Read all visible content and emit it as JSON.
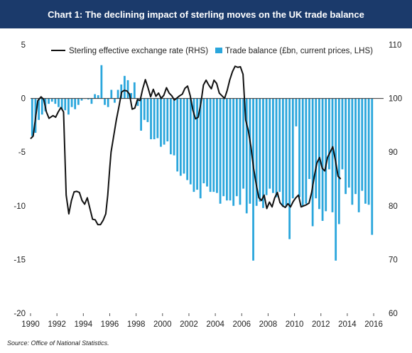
{
  "title": "Chart 1: The declining impact of sterling moves on the UK trade balance",
  "source": {
    "label": "Source:",
    "text": "Office of National Statistics."
  },
  "chart_data": {
    "type": "bar+line",
    "colors": {
      "bar": "#2aa6dc",
      "line": "#111111",
      "header": "#1b3a6b"
    },
    "legend": {
      "placement": "top",
      "line_label": "Sterling effective exchange rate (RHS)",
      "bar_label": "Trade balance (£bn, current prices, LHS)"
    },
    "x_ticks": [
      "1990",
      "1992",
      "1994",
      "1996",
      "1998",
      "2000",
      "2002",
      "2004",
      "2006",
      "2008",
      "2010",
      "2012",
      "2014",
      "2016"
    ],
    "y_left": {
      "min": -20,
      "max": 5,
      "ticks": [
        "5",
        "0",
        "-5",
        "-10",
        "-15",
        "-20"
      ]
    },
    "y_right": {
      "min": 60,
      "max": 110,
      "ticks": [
        "110",
        "100",
        "90",
        "80",
        "70",
        "60"
      ]
    },
    "x_range": [
      1990,
      2016.75
    ],
    "series": [
      {
        "name": "Trade balance (£bn, current prices, LHS)",
        "axis": "left",
        "start": 1990.0,
        "step": 0.25,
        "values": [
          -3.5,
          -3.2,
          -2.0,
          -1.5,
          -1.2,
          -0.5,
          -0.3,
          -0.5,
          -0.8,
          -1.0,
          -1.1,
          -1.5,
          -0.8,
          -1.0,
          -0.6,
          -0.2,
          0.0,
          -0.1,
          -0.5,
          0.4,
          0.3,
          3.1,
          -0.6,
          -0.8,
          0.8,
          -0.4,
          0.8,
          1.3,
          2.1,
          1.7,
          0.5,
          1.5,
          -0.7,
          -3.0,
          -2.0,
          -2.2,
          -3.8,
          -3.8,
          -3.7,
          -4.5,
          -4.3,
          -4.0,
          -5.2,
          -5.3,
          -6.8,
          -7.2,
          -7.0,
          -7.6,
          -8.0,
          -8.7,
          -8.5,
          -9.3,
          -7.9,
          -8.2,
          -8.7,
          -8.7,
          -8.8,
          -9.8,
          -9.1,
          -9.5,
          -9.5,
          -10.0,
          -9.1,
          -9.9,
          -8.4,
          -10.7,
          -9.8,
          -15.1,
          -10.0,
          -9.6,
          -10.2,
          -9.0,
          -8.4,
          -8.8,
          -9.2,
          -8.7,
          -10.1,
          -10.1,
          -13.1,
          -9.3,
          -2.6,
          -9.2,
          -10.0,
          -9.8,
          -7.5,
          -11.9,
          -9.3,
          -10.3,
          -11.4,
          -10.5,
          -6.6,
          -10.6,
          -15.1,
          -11.7,
          -6.6,
          -8.9,
          -8.3,
          -9.9,
          -8.9,
          -10.6,
          -8.6,
          -9.8,
          -9.9,
          -12.7
        ]
      },
      {
        "name": "Sterling effective exchange rate (RHS)",
        "axis": "right",
        "points": [
          [
            1990.0,
            92.5
          ],
          [
            1990.2,
            93
          ],
          [
            1990.55,
            99.6
          ],
          [
            1990.8,
            100.3
          ],
          [
            1991.0,
            99.8
          ],
          [
            1991.2,
            97.5
          ],
          [
            1991.4,
            96.3
          ],
          [
            1991.7,
            96.8
          ],
          [
            1991.9,
            96.5
          ],
          [
            1992.1,
            97.5
          ],
          [
            1992.3,
            98.3
          ],
          [
            1992.5,
            97.5
          ],
          [
            1992.7,
            82
          ],
          [
            1992.9,
            78.5
          ],
          [
            1993.1,
            81
          ],
          [
            1993.3,
            82.6
          ],
          [
            1993.5,
            82.7
          ],
          [
            1993.7,
            82.5
          ],
          [
            1993.9,
            81
          ],
          [
            1994.1,
            80.3
          ],
          [
            1994.3,
            81.5
          ],
          [
            1994.5,
            79.5
          ],
          [
            1994.7,
            77.5
          ],
          [
            1994.9,
            77.4
          ],
          [
            1995.1,
            76.5
          ],
          [
            1995.3,
            76.5
          ],
          [
            1995.5,
            77.3
          ],
          [
            1995.7,
            78.5
          ],
          [
            1995.85,
            82
          ],
          [
            1996.0,
            87
          ],
          [
            1996.1,
            90
          ],
          [
            1996.3,
            93
          ],
          [
            1996.5,
            96
          ],
          [
            1996.7,
            98.5
          ],
          [
            1996.9,
            101.2
          ],
          [
            1997.1,
            101.5
          ],
          [
            1997.3,
            101.4
          ],
          [
            1997.5,
            100.8
          ],
          [
            1997.7,
            98
          ],
          [
            1997.9,
            98.2
          ],
          [
            1998.1,
            99.8
          ],
          [
            1998.3,
            99.6
          ],
          [
            1998.5,
            101.8
          ],
          [
            1998.7,
            103.5
          ],
          [
            1998.9,
            102
          ],
          [
            1999.1,
            100.3
          ],
          [
            1999.3,
            101.7
          ],
          [
            1999.5,
            100.4
          ],
          [
            1999.7,
            101
          ],
          [
            1999.9,
            100
          ],
          [
            2000.1,
            100.6
          ],
          [
            2000.3,
            102
          ],
          [
            2000.5,
            101
          ],
          [
            2000.7,
            100.5
          ],
          [
            2000.9,
            99.7
          ],
          [
            2001.1,
            100.1
          ],
          [
            2001.3,
            100.5
          ],
          [
            2001.5,
            100.8
          ],
          [
            2001.7,
            101.9
          ],
          [
            2001.9,
            102.3
          ],
          [
            2002.1,
            100.5
          ],
          [
            2002.3,
            97.8
          ],
          [
            2002.5,
            96.2
          ],
          [
            2002.7,
            96.5
          ],
          [
            2002.9,
            99
          ],
          [
            2003.1,
            102.5
          ],
          [
            2003.3,
            103.4
          ],
          [
            2003.5,
            102.5
          ],
          [
            2003.7,
            101.8
          ],
          [
            2003.9,
            103.4
          ],
          [
            2004.1,
            102.8
          ],
          [
            2004.3,
            101
          ],
          [
            2004.5,
            100.5
          ],
          [
            2004.7,
            100
          ],
          [
            2004.9,
            101.5
          ],
          [
            2005.1,
            103.5
          ],
          [
            2005.3,
            105
          ],
          [
            2005.5,
            106
          ],
          [
            2005.7,
            105.8
          ],
          [
            2005.9,
            105.9
          ],
          [
            2006.1,
            104.5
          ],
          [
            2006.3,
            96
          ],
          [
            2006.5,
            94
          ],
          [
            2006.7,
            91
          ],
          [
            2006.9,
            87
          ],
          [
            2007.1,
            84
          ],
          [
            2007.3,
            81.5
          ],
          [
            2007.5,
            81
          ],
          [
            2007.7,
            82
          ],
          [
            2007.9,
            79.5
          ],
          [
            2008.1,
            80.7
          ],
          [
            2008.3,
            79.8
          ],
          [
            2008.5,
            81.5
          ],
          [
            2008.7,
            82.5
          ],
          [
            2008.9,
            80.6
          ],
          [
            2009.1,
            80
          ],
          [
            2009.3,
            79.7
          ],
          [
            2009.5,
            80.4
          ],
          [
            2009.7,
            79.8
          ],
          [
            2009.9,
            80.8
          ],
          [
            2010.1,
            81.5
          ],
          [
            2010.3,
            82
          ],
          [
            2010.5,
            79.8
          ],
          [
            2010.7,
            80
          ],
          [
            2010.9,
            80.2
          ],
          [
            2011.1,
            80.5
          ],
          [
            2011.3,
            82.5
          ],
          [
            2011.5,
            85.5
          ],
          [
            2011.7,
            88
          ],
          [
            2011.9,
            89
          ],
          [
            2012.1,
            87
          ],
          [
            2012.3,
            86.5
          ],
          [
            2012.5,
            89
          ],
          [
            2012.7,
            90
          ],
          [
            2012.9,
            91
          ],
          [
            2013.1,
            88.5
          ],
          [
            2013.3,
            85.5
          ],
          [
            2013.5,
            85
          ]
        ]
      }
    ]
  }
}
